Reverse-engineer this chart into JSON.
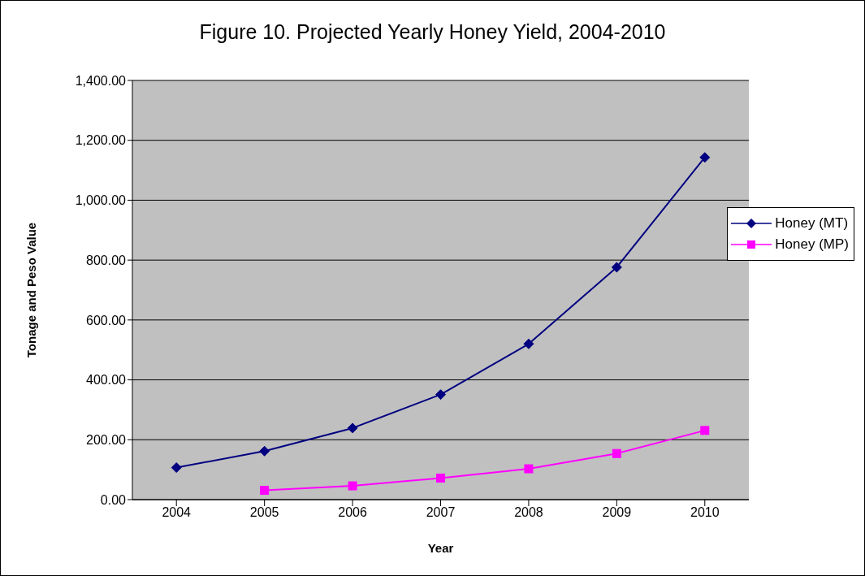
{
  "chart_data": {
    "type": "line",
    "title": "Figure 10. Projected Yearly Honey Yield, 2004-2010",
    "xlabel": "Year",
    "ylabel": "Tonage and Peso Value",
    "categories": [
      "2004",
      "2005",
      "2006",
      "2007",
      "2008",
      "2009",
      "2010"
    ],
    "series": [
      {
        "name": "Honey (MT)",
        "color": "#000080",
        "marker": "diamond",
        "values": [
          107,
          162,
          239,
          351,
          520,
          776,
          1143
        ]
      },
      {
        "name": "Honey (MP)",
        "color": "#ff00ff",
        "marker": "square",
        "values": [
          null,
          31,
          46,
          72,
          103,
          154,
          231
        ]
      }
    ],
    "ylim": [
      0,
      1400
    ],
    "yticks": [
      {
        "value": 0,
        "label": "0.00"
      },
      {
        "value": 200,
        "label": "200.00"
      },
      {
        "value": 400,
        "label": "400.00"
      },
      {
        "value": 600,
        "label": "600.00"
      },
      {
        "value": 800,
        "label": "800.00"
      },
      {
        "value": 1000,
        "label": "1,000.00"
      },
      {
        "value": 1200,
        "label": "1,200.00"
      },
      {
        "value": 1400,
        "label": "1,400.00"
      }
    ],
    "grid": "y",
    "legend": "right",
    "line_style": "solid"
  }
}
